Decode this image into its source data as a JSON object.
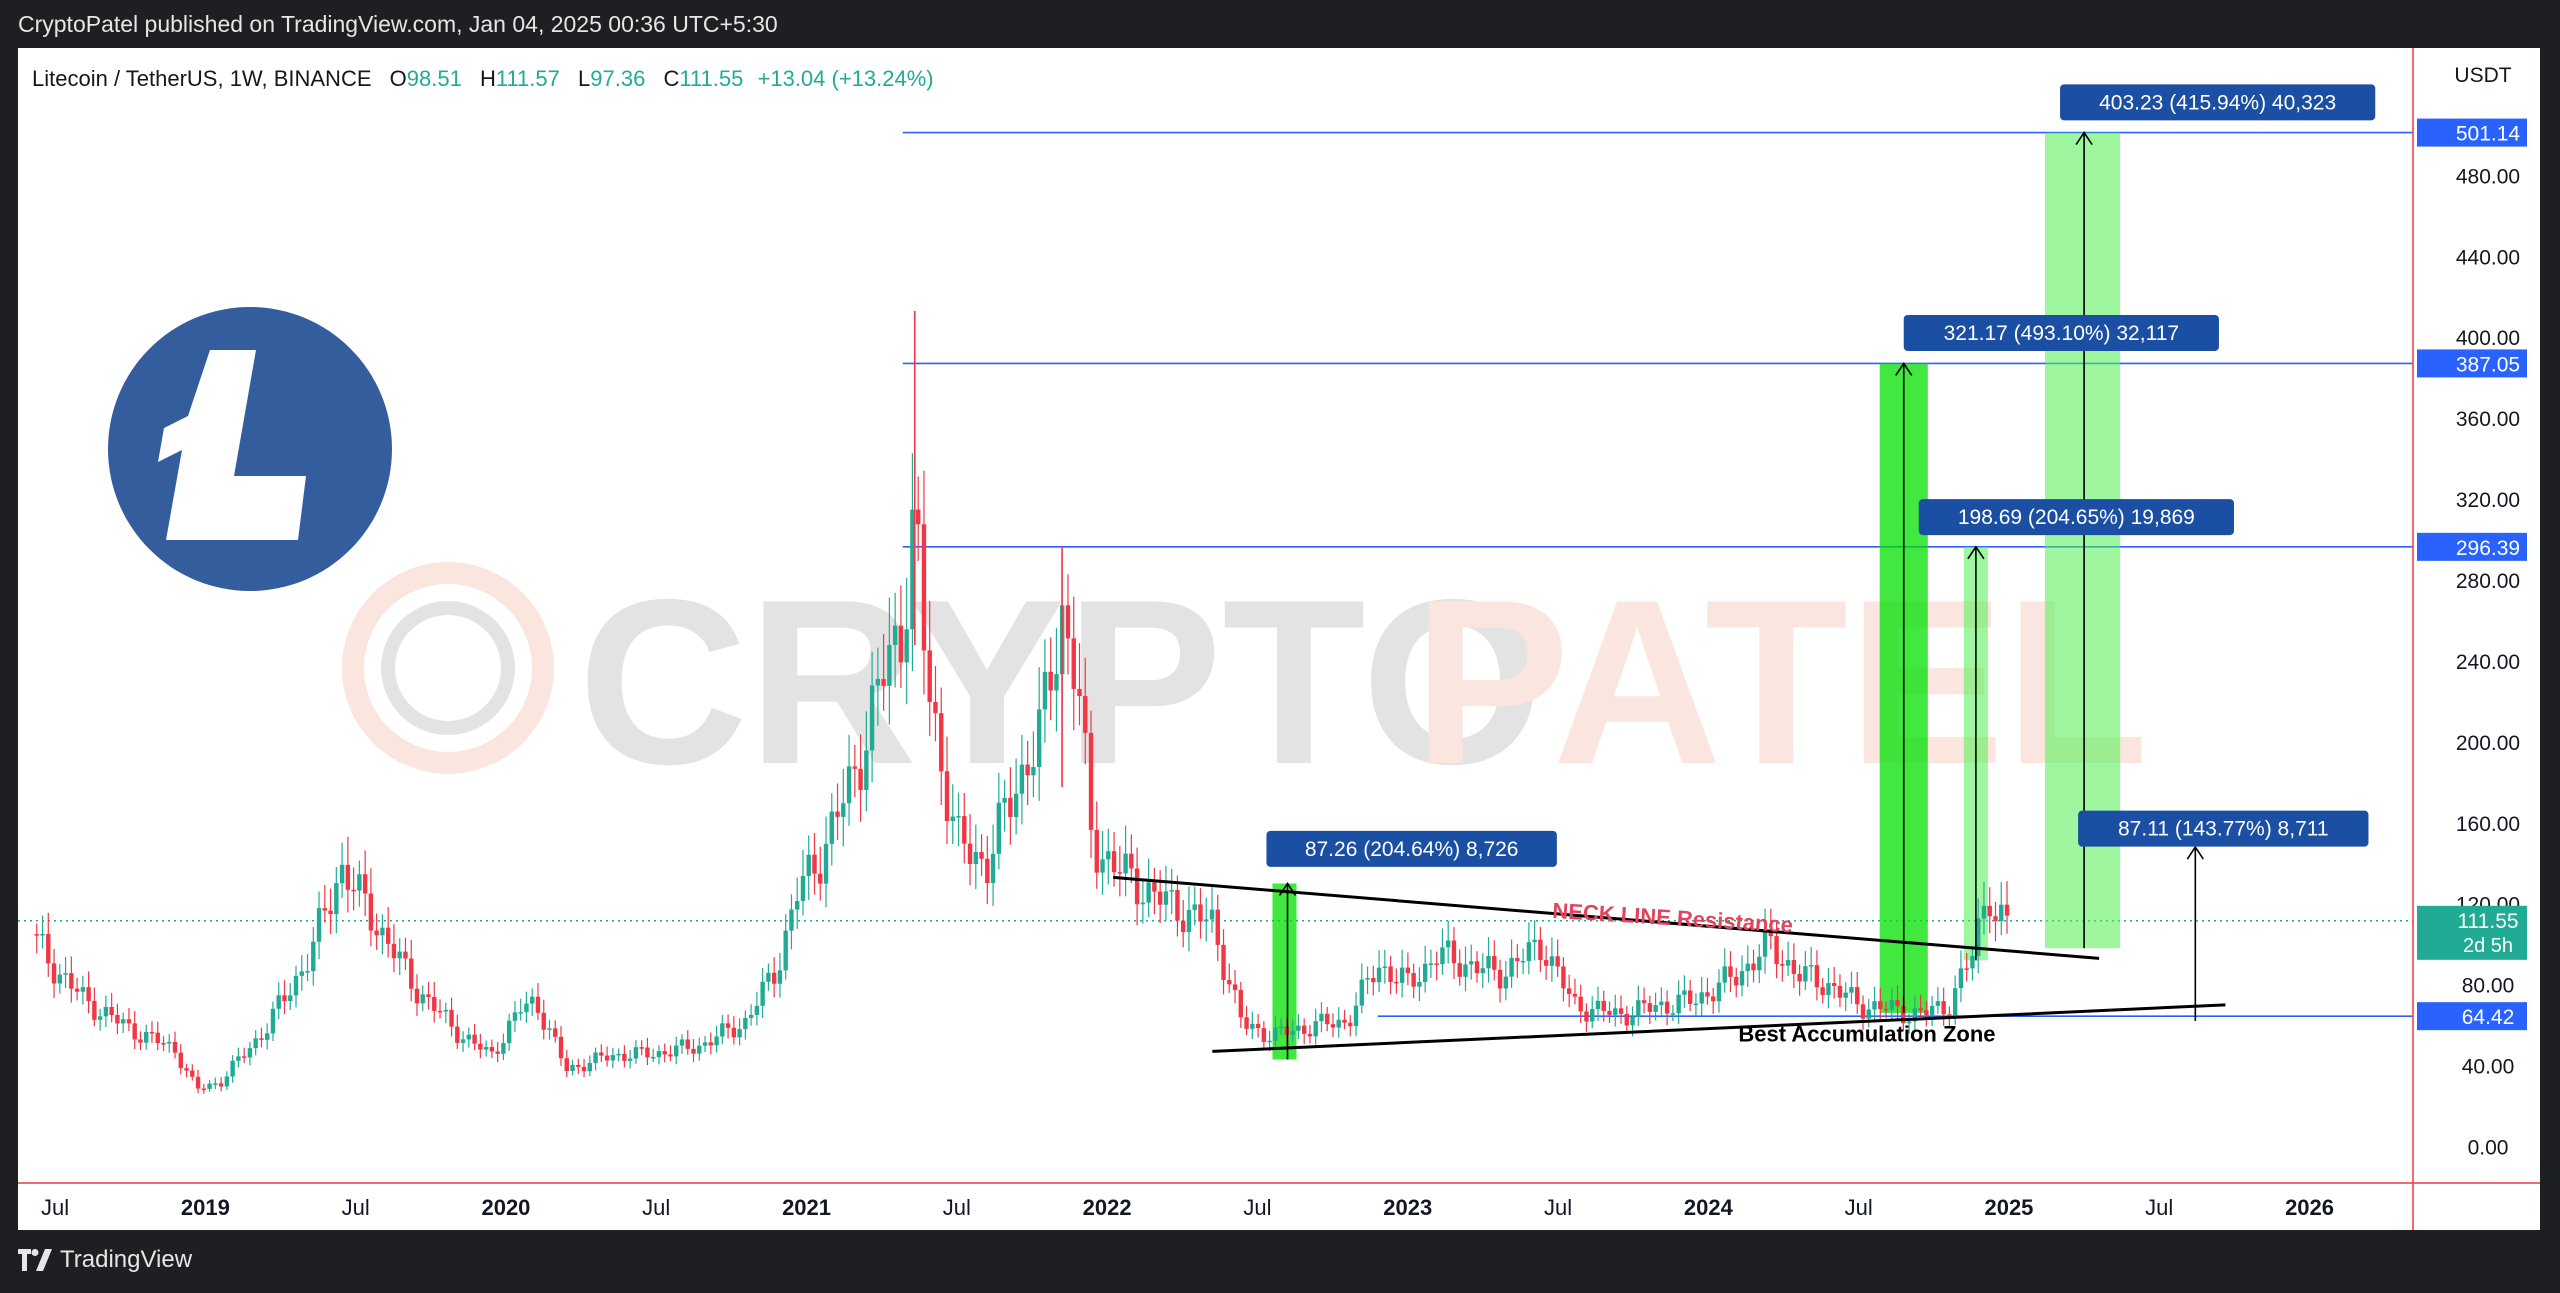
{
  "header": {
    "published_text": "CryptoPatel published on TradingView.com, Jan 04, 2025 00:36 UTC+5:30"
  },
  "footer": {
    "brand": "TradingView"
  },
  "legend": {
    "symbol": "Litecoin / TetherUS, 1W, BINANCE",
    "open_label": "O",
    "open": "98.51",
    "high_label": "H",
    "high": "111.57",
    "low_label": "L",
    "low": "97.36",
    "close_label": "C",
    "close": "111.55",
    "change": "+13.04 (+13.24%)"
  },
  "currency": "USDT",
  "watermark": "CRYPTOPATEL",
  "colors": {
    "up": "#22ab94",
    "down": "#f23645",
    "line": "#2962ff",
    "label_bg": "#1a4fa3",
    "box_green": "#00e000",
    "box_light_green": "#4ef04e",
    "neck_text": "#e0455d",
    "logo_blue": "#345d9d"
  },
  "annotations": {
    "neckline": "NECK LINE Resistance",
    "accumulation": "Best Accumulation Zone",
    "measures": [
      {
        "text": "87.26 (204.64%) 8,726"
      },
      {
        "text": "321.17 (493.10%) 32,117"
      },
      {
        "text": "198.69 (204.65%) 19,869"
      },
      {
        "text": "403.23 (415.94%) 40,323"
      },
      {
        "text": "87.11 (143.77%) 8,711"
      }
    ]
  },
  "price_tags": {
    "current_price": "111.55",
    "countdown": "2d 5h"
  },
  "chart_data": {
    "type": "candlestick",
    "x_start": "2018-05",
    "x_end": "2026-06",
    "y_axis_labels": [
      "0.00",
      "40.00",
      "80.00",
      "120.00",
      "160.00",
      "200.00",
      "240.00",
      "280.00",
      "320.00",
      "360.00",
      "400.00",
      "440.00",
      "480.00"
    ],
    "x_axis_labels": [
      {
        "label": "Jul",
        "year_label": false,
        "t": 2018.5
      },
      {
        "label": "2019",
        "year_label": true,
        "t": 2019.0
      },
      {
        "label": "Jul",
        "year_label": false,
        "t": 2019.5
      },
      {
        "label": "2020",
        "year_label": true,
        "t": 2020.0
      },
      {
        "label": "Jul",
        "year_label": false,
        "t": 2020.5
      },
      {
        "label": "2021",
        "year_label": true,
        "t": 2021.0
      },
      {
        "label": "Jul",
        "year_label": false,
        "t": 2021.5
      },
      {
        "label": "2022",
        "year_label": true,
        "t": 2022.0
      },
      {
        "label": "Jul",
        "year_label": false,
        "t": 2022.5
      },
      {
        "label": "2023",
        "year_label": true,
        "t": 2023.0
      },
      {
        "label": "Jul",
        "year_label": false,
        "t": 2023.5
      },
      {
        "label": "2024",
        "year_label": true,
        "t": 2024.0
      },
      {
        "label": "Jul",
        "year_label": false,
        "t": 2024.5
      },
      {
        "label": "2025",
        "year_label": true,
        "t": 2025.0
      },
      {
        "label": "Jul",
        "year_label": false,
        "t": 2025.5
      },
      {
        "label": "2026",
        "year_label": true,
        "t": 2026.0
      }
    ],
    "horizontal_levels": [
      {
        "value": 501.14,
        "label": "501.14"
      },
      {
        "value": 387.05,
        "label": "387.05"
      },
      {
        "value": 296.39,
        "label": "296.39"
      },
      {
        "value": 64.42,
        "label": "64.42"
      }
    ],
    "price_path": [
      [
        2018.42,
        105
      ],
      [
        2018.5,
        88
      ],
      [
        2018.6,
        72
      ],
      [
        2018.75,
        58
      ],
      [
        2018.9,
        48
      ],
      [
        2018.97,
        28
      ],
      [
        2019.05,
        32
      ],
      [
        2019.2,
        58
      ],
      [
        2019.35,
        95
      ],
      [
        2019.45,
        138
      ],
      [
        2019.55,
        115
      ],
      [
        2019.7,
        78
      ],
      [
        2019.85,
        55
      ],
      [
        2019.95,
        45
      ],
      [
        2020.05,
        68
      ],
      [
        2020.1,
        72
      ],
      [
        2020.2,
        38
      ],
      [
        2020.35,
        45
      ],
      [
        2020.5,
        46
      ],
      [
        2020.65,
        50
      ],
      [
        2020.8,
        62
      ],
      [
        2020.9,
        88
      ],
      [
        2020.97,
        125
      ],
      [
        2021.05,
        145
      ],
      [
        2021.15,
        180
      ],
      [
        2021.25,
        230
      ],
      [
        2021.32,
        260
      ],
      [
        2021.36,
        310
      ],
      [
        2021.4,
        230
      ],
      [
        2021.5,
        150
      ],
      [
        2021.6,
        140
      ],
      [
        2021.7,
        180
      ],
      [
        2021.78,
        205
      ],
      [
        2021.85,
        265
      ],
      [
        2021.9,
        230
      ],
      [
        2021.95,
        150
      ],
      [
        2022.05,
        135
      ],
      [
        2022.2,
        120
      ],
      [
        2022.35,
        110
      ],
      [
        2022.45,
        60
      ],
      [
        2022.55,
        55
      ],
      [
        2022.7,
        60
      ],
      [
        2022.8,
        62
      ],
      [
        2022.9,
        90
      ],
      [
        2023.0,
        80
      ],
      [
        2023.1,
        95
      ],
      [
        2023.3,
        85
      ],
      [
        2023.45,
        100
      ],
      [
        2023.55,
        70
      ],
      [
        2023.7,
        65
      ],
      [
        2023.85,
        70
      ],
      [
        2023.95,
        72
      ],
      [
        2024.1,
        85
      ],
      [
        2024.2,
        100
      ],
      [
        2024.3,
        85
      ],
      [
        2024.4,
        80
      ],
      [
        2024.5,
        70
      ],
      [
        2024.6,
        68
      ],
      [
        2024.7,
        65
      ],
      [
        2024.8,
        70
      ],
      [
        2024.88,
        95
      ],
      [
        2024.93,
        130
      ],
      [
        2024.96,
        110
      ],
      [
        2025.01,
        111.55
      ]
    ],
    "spikes": [
      {
        "t": 2021.36,
        "high": 413
      },
      {
        "t": 2021.85,
        "high": 296
      }
    ],
    "neckline": [
      [
        2022.02,
        133
      ],
      [
        2025.3,
        93
      ]
    ],
    "support_line": [
      [
        2022.35,
        47
      ],
      [
        2025.72,
        70
      ]
    ],
    "measure_boxes": [
      {
        "t0": 2022.55,
        "t1": 2022.63,
        "low": 43,
        "high": 130,
        "color": "green",
        "label_t": 2022.53,
        "label_v": 156
      },
      {
        "t0": 2024.57,
        "t1": 2024.73,
        "low": 66,
        "high": 387.05,
        "color": "green",
        "label_t": 2024.65,
        "label_v": 411
      },
      {
        "t0": 2024.85,
        "t1": 2024.93,
        "low": 92,
        "high": 296.39,
        "color": "light",
        "label_t": 2024.7,
        "label_v": 320
      },
      {
        "t0": 2025.12,
        "t1": 2025.37,
        "low": 98,
        "high": 501.14,
        "color": "light",
        "label_t": 2025.17,
        "label_v": 525
      },
      {
        "t0": null,
        "t1": null,
        "low": null,
        "high": null,
        "color": "none",
        "label_t": 2025.23,
        "label_v": 166
      }
    ],
    "arrows": [
      {
        "t": 2022.6,
        "from": 43,
        "to": 130
      },
      {
        "t": 2024.65,
        "from": 66,
        "to": 387.05
      },
      {
        "t": 2024.89,
        "from": 92,
        "to": 296.39
      },
      {
        "t": 2025.25,
        "from": 98,
        "to": 501.14
      },
      {
        "t": 2025.62,
        "from": 62,
        "to": 148
      }
    ]
  }
}
